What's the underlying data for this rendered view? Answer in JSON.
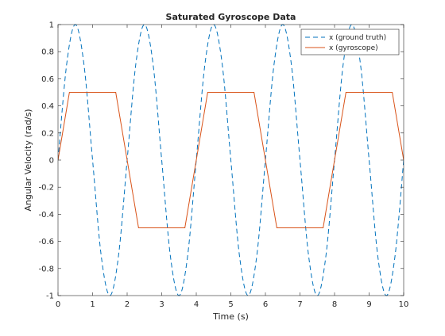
{
  "chart_data": {
    "type": "line",
    "title": "Saturated Gyroscope Data",
    "xlabel": "Time (s)",
    "ylabel": "Angular Velocity (rad/s)",
    "xlim": [
      0,
      10
    ],
    "ylim": [
      -1,
      1
    ],
    "xticks": [
      0,
      1,
      2,
      3,
      4,
      5,
      6,
      7,
      8,
      9,
      10
    ],
    "xtick_labels": [
      "0",
      "1",
      "2",
      "3",
      "4",
      "5",
      "6",
      "7",
      "8",
      "9",
      "10"
    ],
    "yticks": [
      -1,
      -0.8,
      -0.6,
      -0.4,
      -0.2,
      0,
      0.2,
      0.4,
      0.6,
      0.8,
      1
    ],
    "ytick_labels": [
      "-1",
      "-0.8",
      "-0.6",
      "-0.4",
      "-0.2",
      "0",
      "0.2",
      "0.4",
      "0.6",
      "0.8",
      "1"
    ],
    "grid": false,
    "legend_position": "top-right",
    "series": [
      {
        "name": "x (ground truth)",
        "color": "#0072BD",
        "style": "dashed",
        "x": [
          0,
          0.25,
          0.5,
          0.75,
          1,
          1.25,
          1.5,
          1.75,
          2,
          2.25,
          2.5,
          2.75,
          3,
          3.25,
          3.5,
          3.75,
          4,
          4.25,
          4.5,
          4.75,
          5,
          5.25,
          5.5,
          5.75,
          6,
          6.25,
          6.5,
          6.75,
          7,
          7.25,
          7.5,
          7.75,
          8,
          8.25,
          8.5,
          8.75,
          9,
          9.25,
          9.5,
          9.75,
          10
        ],
        "y": [
          0,
          0.707,
          1,
          0.707,
          0,
          -0.707,
          -1,
          -0.707,
          0,
          0.707,
          1,
          0.707,
          0,
          -0.707,
          -1,
          -0.707,
          0,
          0.707,
          1,
          0.707,
          0,
          -0.707,
          -1,
          -0.707,
          0,
          0.707,
          1,
          0.707,
          0,
          -0.707,
          -1,
          -0.707,
          0,
          0.707,
          1,
          0.707,
          0,
          -0.707,
          -1,
          -0.707,
          0
        ]
      },
      {
        "name": "x (gyroscope)",
        "color": "#D95319",
        "style": "solid",
        "x": [
          0,
          0.33,
          1.67,
          2.33,
          3.67,
          4.33,
          5.67,
          6.33,
          7.67,
          8.33,
          9.67,
          10
        ],
        "y": [
          0,
          0.5,
          0.5,
          -0.5,
          -0.5,
          0.5,
          0.5,
          -0.5,
          -0.5,
          0.5,
          0.5,
          0
        ]
      }
    ]
  }
}
